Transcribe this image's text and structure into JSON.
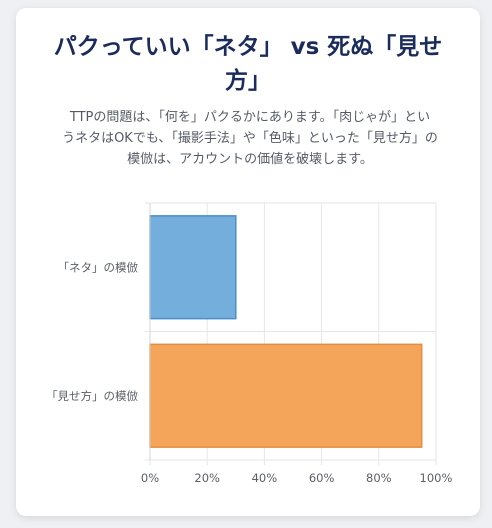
{
  "title_line1": "パクっていい「ネタ」 vs 死ぬ「見せ",
  "title_line2": "方」",
  "description_line1": "TTPの問題は、「何を」パクるかにあります。「肉じゃが」とい",
  "description_line2": "うネタはOKでも、「撮影手法」や「色味」といった「見せ方」の",
  "description_line3": "模倣は、アカウントの価値を破壊します。",
  "chart_data": {
    "type": "bar",
    "orientation": "horizontal",
    "categories": [
      "「ネタ」の模倣",
      "「見せ方」の模倣"
    ],
    "values": [
      30,
      95
    ],
    "xlim": [
      0,
      100
    ],
    "xticks": [
      "0%",
      "20%",
      "40%",
      "60%",
      "80%",
      "100%"
    ],
    "grid": true,
    "legend": "none",
    "colors": {
      "bar_fills": [
        "#74aedc",
        "#f4a55a"
      ],
      "bar_strokes": [
        "#4a8fc9",
        "#e58c3f"
      ],
      "grid": "#e6e6e6"
    }
  }
}
